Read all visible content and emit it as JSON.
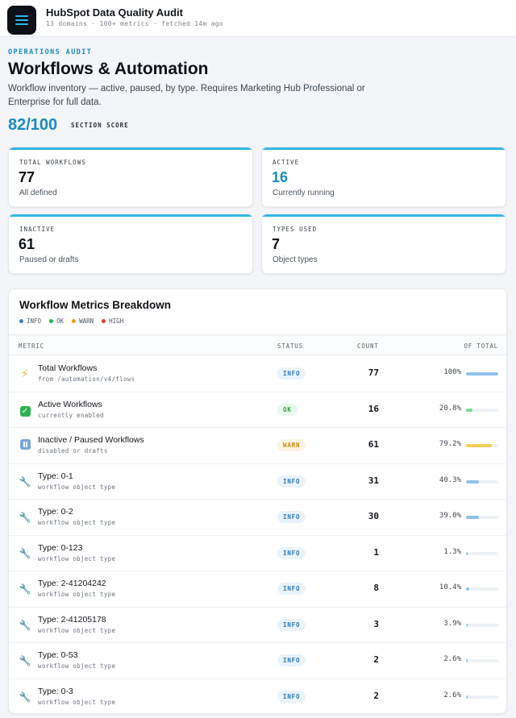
{
  "header": {
    "title": "HubSpot Data Quality Audit",
    "subtitle": "13 domains · 100+ metrics · fetched 14m ago"
  },
  "section": {
    "eyebrow": "OPERATIONS AUDIT",
    "title": "Workflows & Automation",
    "description": "Workflow inventory — active, paused, by type. Requires Marketing Hub Professional or Enterprise for full data.",
    "score": "82/100",
    "score_label": "SECTION SCORE"
  },
  "stats": [
    {
      "label": "TOTAL WORKFLOWS",
      "value": "77",
      "hint": "All defined"
    },
    {
      "label": "ACTIVE",
      "value": "16",
      "hint": "Currently running"
    },
    {
      "label": "INACTIVE",
      "value": "61",
      "hint": "Paused or drafts"
    },
    {
      "label": "TYPES USED",
      "value": "7",
      "hint": "Object types"
    }
  ],
  "table": {
    "title": "Workflow Metrics Breakdown",
    "legend": [
      {
        "label": "INFO",
        "color": "#3d7fd0"
      },
      {
        "label": "OK",
        "color": "#2eb04f"
      },
      {
        "label": "WARN",
        "color": "#e69a1e"
      },
      {
        "label": "HIGH",
        "color": "#d8432f"
      }
    ],
    "columns": {
      "metric": "METRIC",
      "status": "STATUS",
      "count": "COUNT",
      "of_total": "OF TOTAL"
    },
    "rows": [
      {
        "icon": "lightning-icon",
        "name": "Total Workflows",
        "sub": "from /automation/v4/flows",
        "status": "INFO",
        "count": "77",
        "pct": "100%",
        "fraction": 1.0,
        "bar_color": "#8ec3ea"
      },
      {
        "icon": "check-icon",
        "name": "Active Workflows",
        "sub": "currently enabled",
        "status": "OK",
        "count": "16",
        "pct": "20.8%",
        "fraction": 0.208,
        "bar_color": "#7ed99a"
      },
      {
        "icon": "pause-icon",
        "name": "Inactive / Paused Workflows",
        "sub": "disabled or drafts",
        "status": "WARN",
        "count": "61",
        "pct": "79.2%",
        "fraction": 0.792,
        "bar_color": "#f3cf5c"
      },
      {
        "icon": "wrench-icon",
        "name": "Type: 0-1",
        "sub": "workflow object type",
        "status": "INFO",
        "count": "31",
        "pct": "40.3%",
        "fraction": 0.403,
        "bar_color": "#8ec3ea"
      },
      {
        "icon": "wrench-icon",
        "name": "Type: 0-2",
        "sub": "workflow object type",
        "status": "INFO",
        "count": "30",
        "pct": "39.0%",
        "fraction": 0.39,
        "bar_color": "#8ec3ea"
      },
      {
        "icon": "wrench-icon",
        "name": "Type: 0-123",
        "sub": "workflow object type",
        "status": "INFO",
        "count": "1",
        "pct": "1.3%",
        "fraction": 0.013,
        "bar_color": "#8ec3ea"
      },
      {
        "icon": "wrench-icon",
        "name": "Type: 2-41204242",
        "sub": "workflow object type",
        "status": "INFO",
        "count": "8",
        "pct": "10.4%",
        "fraction": 0.104,
        "bar_color": "#8ec3ea"
      },
      {
        "icon": "wrench-icon",
        "name": "Type: 2-41205178",
        "sub": "workflow object type",
        "status": "INFO",
        "count": "3",
        "pct": "3.9%",
        "fraction": 0.039,
        "bar_color": "#8ec3ea"
      },
      {
        "icon": "wrench-icon",
        "name": "Type: 0-53",
        "sub": "workflow object type",
        "status": "INFO",
        "count": "2",
        "pct": "2.6%",
        "fraction": 0.026,
        "bar_color": "#8ec3ea"
      },
      {
        "icon": "wrench-icon",
        "name": "Type: 0-3",
        "sub": "workflow object type",
        "status": "INFO",
        "count": "2",
        "pct": "2.6%",
        "fraction": 0.026,
        "bar_color": "#8ec3ea"
      }
    ]
  }
}
